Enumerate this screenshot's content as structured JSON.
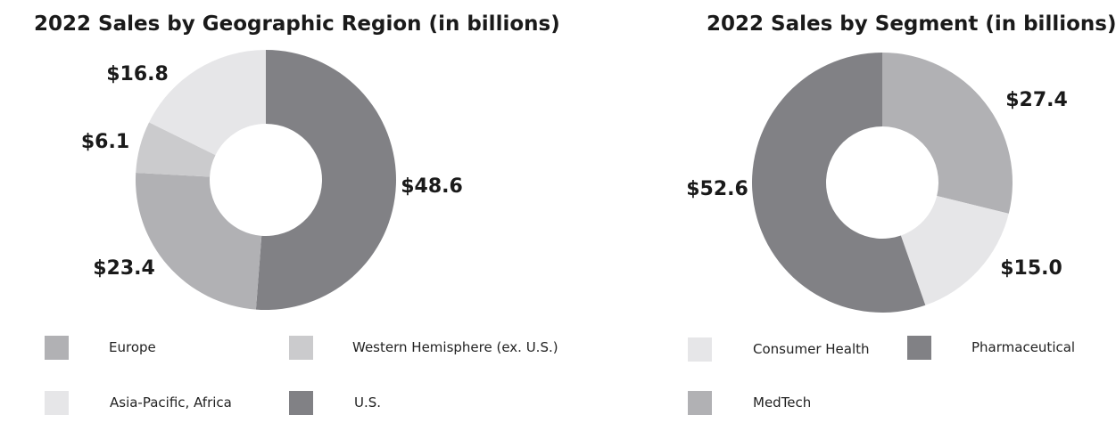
{
  "chart_data": [
    {
      "type": "pie",
      "title": "2022 Sales by Geographic Region (in billions)",
      "slices": [
        {
          "name": "U.S.",
          "value": 48.6,
          "label": "$48.6",
          "color": "#818185"
        },
        {
          "name": "Europe",
          "value": 23.4,
          "label": "$23.4",
          "color": "#b1b1b4"
        },
        {
          "name": "Western Hemisphere (ex. U.S.)",
          "value": 6.1,
          "label": "$6.1",
          "color": "#cbcbcd"
        },
        {
          "name": "Asia-Pacific, Africa",
          "value": 16.8,
          "label": "$16.8",
          "color": "#e6e6e8"
        }
      ],
      "legend": [
        {
          "name": "Europe",
          "color": "#b1b1b4"
        },
        {
          "name": "Western Hemisphere (ex. U.S.)",
          "color": "#cbcbcd"
        },
        {
          "name": "Asia-Pacific, Africa",
          "color": "#e6e6e8"
        },
        {
          "name": "U.S.",
          "color": "#818185"
        }
      ],
      "legend_position": "bottom"
    },
    {
      "type": "pie",
      "title": "2022 Sales by Segment (in billions)",
      "slices": [
        {
          "name": "MedTech",
          "value": 27.4,
          "label": "$27.4",
          "color": "#b1b1b4"
        },
        {
          "name": "Consumer Health",
          "value": 15.0,
          "label": "$15.0",
          "color": "#e6e6e8"
        },
        {
          "name": "Pharmaceutical",
          "value": 52.6,
          "label": "$52.6",
          "color": "#818185"
        }
      ],
      "legend": [
        {
          "name": "Consumer Health",
          "color": "#e6e6e8"
        },
        {
          "name": "Pharmaceutical",
          "color": "#818185"
        },
        {
          "name": "MedTech",
          "color": "#b1b1b4"
        }
      ],
      "legend_position": "bottom"
    }
  ]
}
